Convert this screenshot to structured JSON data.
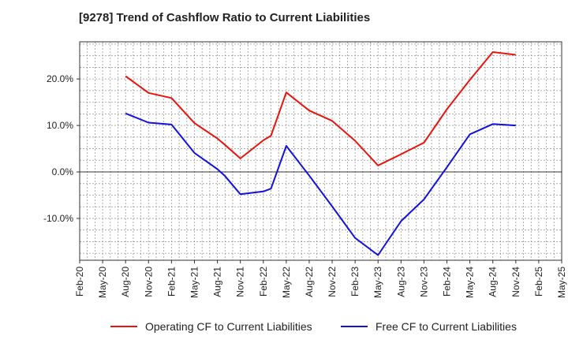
{
  "chart_data": {
    "type": "line",
    "title": "[9278]  Trend of Cashflow Ratio to Current Liabilities",
    "xlabel": "",
    "ylabel": "",
    "x_tick_labels": [
      "Feb-20",
      "May-20",
      "Aug-20",
      "Nov-20",
      "Feb-21",
      "May-21",
      "Aug-21",
      "Nov-21",
      "Feb-22",
      "May-22",
      "Aug-22",
      "Nov-22",
      "Feb-23",
      "May-23",
      "Aug-23",
      "Nov-23",
      "Feb-24",
      "May-24",
      "Aug-24",
      "Nov-24",
      "Feb-25",
      "May-25"
    ],
    "y_tick_labels": [
      "-10.0%",
      "0.0%",
      "10.0%",
      "20.0%"
    ],
    "y_tick_values": [
      -10,
      0,
      10,
      20
    ],
    "ylim": [
      -19,
      28
    ],
    "grid": true,
    "legend_position": "bottom",
    "series": [
      {
        "name": "Operating CF to Current Liabilities",
        "color": "#e8140e",
        "x": [
          "Aug-20",
          "Nov-20",
          "Feb-21",
          "May-21",
          "Aug-21",
          "Sep-21",
          "Nov-21",
          "Feb-22",
          "Mar-22",
          "May-22",
          "Aug-22",
          "Nov-22",
          "Feb-23",
          "May-23",
          "Aug-23",
          "Nov-23",
          "Feb-24",
          "May-24",
          "Jun-24",
          "Aug-24",
          "Nov-24"
        ],
        "values": [
          20.6,
          17.0,
          15.9,
          10.5,
          7.2,
          5.8,
          2.9,
          6.8,
          7.8,
          17.1,
          13.2,
          11.0,
          6.7,
          1.4,
          3.8,
          6.3,
          13.5,
          19.8,
          21.8,
          25.8,
          25.2
        ]
      },
      {
        "name": "Free CF to Current Liabilities",
        "color": "#1212dc",
        "x": [
          "Aug-20",
          "Nov-20",
          "Feb-21",
          "May-21",
          "Aug-21",
          "Sep-21",
          "Nov-21",
          "Feb-22",
          "Mar-22",
          "May-22",
          "Aug-22",
          "Nov-22",
          "Feb-23",
          "May-23",
          "Aug-23",
          "Nov-23",
          "Feb-24",
          "May-24",
          "Aug-24",
          "Nov-24"
        ],
        "values": [
          12.6,
          10.6,
          10.2,
          4.1,
          0.6,
          -0.9,
          -4.8,
          -4.2,
          -3.6,
          5.6,
          -0.8,
          -7.4,
          -14.2,
          -17.9,
          -10.6,
          -5.9,
          1.0,
          8.1,
          10.3,
          10.0
        ]
      }
    ]
  }
}
